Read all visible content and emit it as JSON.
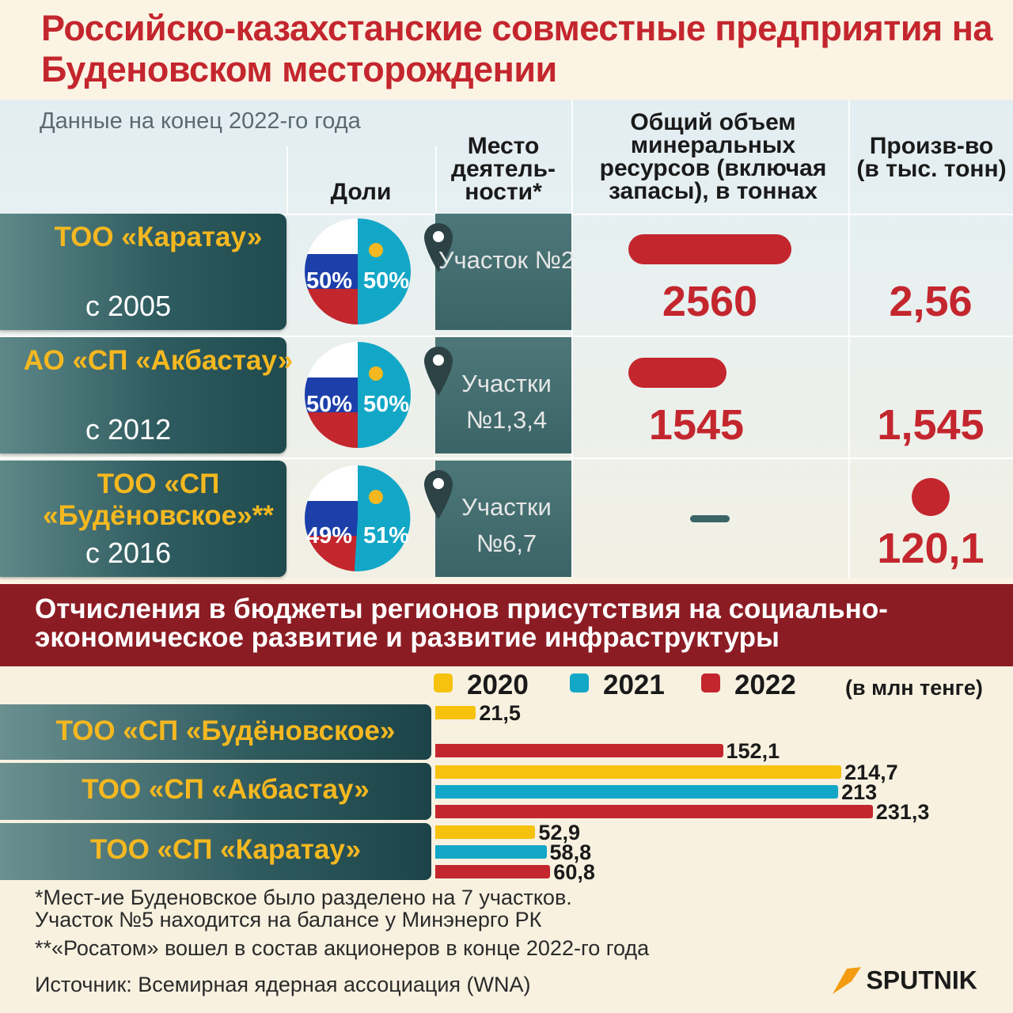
{
  "title": "Российско-казахстанские совместные предприятия на Буденовском месторождении",
  "subtitle": "Данные на конец 2022-го года",
  "columns": {
    "shares": "Доли",
    "location": "Место деятель- ности*",
    "resources": "Общий объем минеральных ресурсов (включая запасы), в тоннах",
    "production": "Произв-во (в тыс. тонн)"
  },
  "companies": [
    {
      "name": "ТОО «Каратау»",
      "since": "с 2005",
      "share_ru": "50%",
      "share_kz": "50%",
      "location": "Участок №2",
      "resources": "2560",
      "production": "2,56"
    },
    {
      "name": "АО «СП «Акбастау»",
      "since": "с 2012",
      "share_ru": "50%",
      "share_kz": "50%",
      "location": "Участки №1,3,4",
      "resources": "1545",
      "production": "1,545"
    },
    {
      "name": "ТОО «СП «Будёновское»**",
      "since": "с 2016",
      "share_ru": "49%",
      "share_kz": "51%",
      "location": "Участки №6,7",
      "resources": "",
      "production": "120,1"
    }
  ],
  "section_title": "Отчисления в бюджеты регионов присутствия на социально-экономическое развитие и развитие инфраструктуры",
  "chart_data": {
    "type": "bar",
    "orientation": "horizontal",
    "unit": "(в млн тенге)",
    "categories": [
      "ТОО «СП «Будёновское»",
      "ТОО «СП «Акбастау»",
      "ТОО «СП «Каратау»"
    ],
    "series": [
      {
        "name": "2020",
        "color": "#f6c20e",
        "values": [
          21.5,
          214.7,
          52.9
        ],
        "labels": [
          "21,5",
          "214,7",
          "52,9"
        ]
      },
      {
        "name": "2021",
        "color": "#12a7c7",
        "values": [
          null,
          213,
          58.8
        ],
        "labels": [
          "",
          "213",
          "58,8"
        ]
      },
      {
        "name": "2022",
        "color": "#c4262e",
        "values": [
          152.1,
          231.3,
          60.8
        ],
        "labels": [
          "152,1",
          "231,3",
          "60,8"
        ]
      }
    ]
  },
  "footnotes": [
    "*Мест-ие Буденовское было разделено на 7 участков.",
    "Участок №5 находится на балансе у Минэнерго РК",
    "**«Росатом» вошел в состав акционеров в конце 2022-го года"
  ],
  "source": "Источник: Всемирная ядерная ассоциация (WNA)",
  "brand": "SPUTNIK",
  "colors": {
    "red": "#c4262e",
    "teal": "#2f5c60",
    "yellow": "#f5b820",
    "kz_blue": "#12a7c7",
    "ru_blue": "#1c3faa"
  }
}
